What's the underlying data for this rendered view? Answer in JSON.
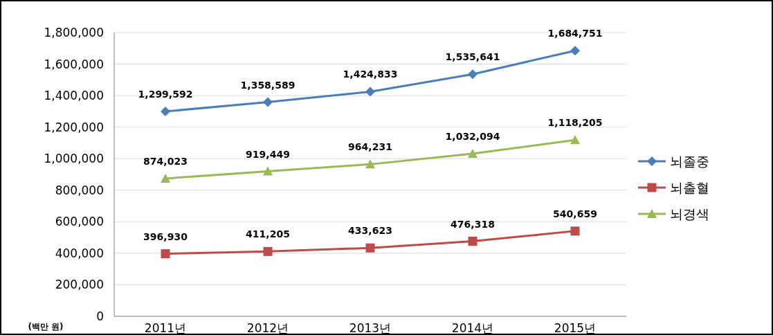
{
  "chart_data": {
    "type": "line",
    "ylabel": "(백만 원)",
    "categories": [
      "2011년",
      "2012년",
      "2013년",
      "2014년",
      "2015년"
    ],
    "series": [
      {
        "name": "뇌졸중",
        "color": "#4a7ebb",
        "marker": "diamond",
        "values": [
          1299592,
          1358589,
          1424833,
          1535641,
          1684751
        ],
        "value_labels": [
          "1,299,592",
          "1,358,589",
          "1,424,833",
          "1,535,641",
          "1,684,751"
        ]
      },
      {
        "name": "뇌출혈",
        "color": "#be4b48",
        "marker": "square",
        "values": [
          396930,
          411205,
          433623,
          476318,
          540659
        ],
        "value_labels": [
          "396,930",
          "411,205",
          "433,623",
          "476,318",
          "540,659"
        ]
      },
      {
        "name": "뇌경색",
        "color": "#98b954",
        "marker": "triangle",
        "values": [
          874023,
          919449,
          964231,
          1032094,
          1118205
        ],
        "value_labels": [
          "874,023",
          "919,449",
          "964,231",
          "1,032,094",
          "1,118,205"
        ]
      }
    ],
    "ylim": [
      0,
      1800000
    ],
    "yticks": [
      0,
      {
        "value": 200000,
        "label": "200,000"
      },
      {
        "value": 400000,
        "label": "400,000"
      },
      {
        "value": 600000,
        "label": "600,000"
      },
      {
        "value": 800000,
        "label": "800,000"
      },
      {
        "value": 1000000,
        "label": "1,000,000"
      },
      {
        "value": 1200000,
        "label": "1,200,000"
      },
      {
        "value": 1400000,
        "label": "1,400,000"
      },
      {
        "value": 1600000,
        "label": "1,600,000"
      },
      {
        "value": 1800000,
        "label": "1,800,000"
      }
    ],
    "grid": "y",
    "legend": "right"
  }
}
